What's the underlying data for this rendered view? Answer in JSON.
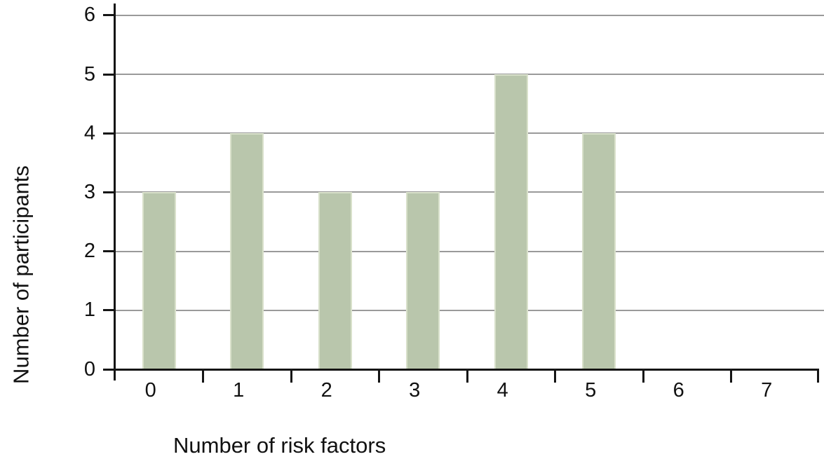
{
  "chart_data": {
    "type": "bar",
    "title": "",
    "categories": [
      "0",
      "1",
      "2",
      "3",
      "4",
      "5",
      "6",
      "7"
    ],
    "values": [
      3,
      4,
      3,
      3,
      5,
      4,
      0,
      0
    ],
    "xlabel": "Number of risk factors",
    "ylabel": "Number of participants",
    "y_ticks": [
      "0",
      "1",
      "2",
      "3",
      "4",
      "5",
      "6"
    ],
    "ylim": [
      0,
      6
    ],
    "grid": "horizontal-only",
    "legend": "none",
    "colors": {
      "bar_fill": "#b9c6ac",
      "bar_edge": "#d9e1cb",
      "gridline": "#9a9a9a",
      "axis": "#151515",
      "text": "#111111",
      "background": "#ffffff"
    }
  }
}
